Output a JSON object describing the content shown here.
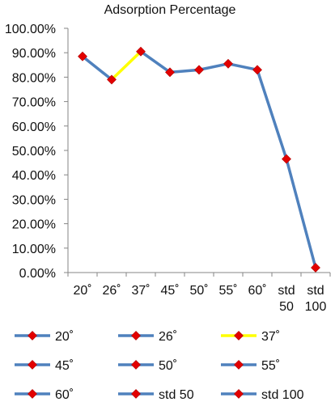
{
  "chart_data": {
    "type": "line",
    "title": "Adsorption Percentage",
    "categories": [
      "20˚",
      "26˚",
      "37˚",
      "45˚",
      "50˚",
      "55˚",
      "60˚",
      "std 50",
      "std 100"
    ],
    "values": [
      0.885,
      0.79,
      0.905,
      0.82,
      0.83,
      0.855,
      0.83,
      0.465,
      0.02
    ],
    "ylim": [
      0,
      1
    ],
    "yticks": [
      "0.00%",
      "10.00%",
      "20.00%",
      "30.00%",
      "40.00%",
      "50.00%",
      "60.00%",
      "70.00%",
      "80.00%",
      "90.00%",
      "100.00%"
    ],
    "grid": false,
    "legend_position": "bottom",
    "legend": [
      "20˚",
      "26˚",
      "37˚",
      "45˚",
      "50˚",
      "55˚",
      "60˚",
      "std 50",
      "std 100"
    ],
    "segment_colors": [
      "#4f81bd",
      "#ffff00",
      "#4f81bd",
      "#4f81bd",
      "#4f81bd",
      "#4f81bd",
      "#4f81bd",
      "#4f81bd"
    ],
    "legend_line_colors": [
      "#4f81bd",
      "#4f81bd",
      "#ffff00",
      "#4f81bd",
      "#4f81bd",
      "#4f81bd",
      "#4f81bd",
      "#4f81bd",
      "#4f81bd"
    ],
    "line_color": "#4f81bd",
    "marker_color": "#e30000",
    "axis_color": "#868686"
  }
}
